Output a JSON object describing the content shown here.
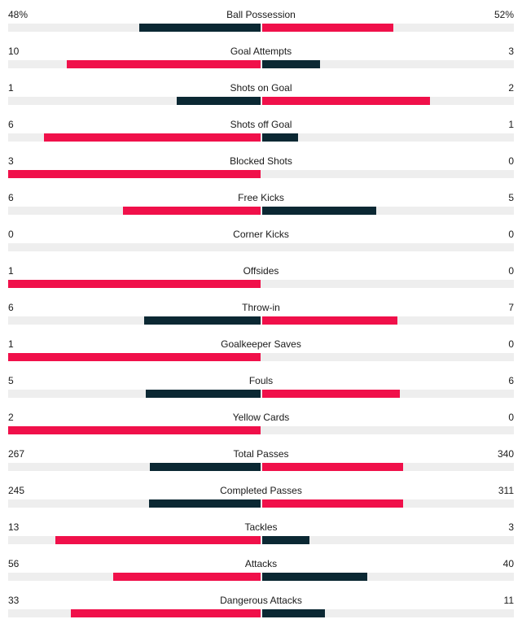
{
  "colors": {
    "leader": "#f0104a",
    "trailer": "#0b2833",
    "track": "#eeeeee"
  },
  "stats": [
    {
      "name": "Ball Possession",
      "home": "48%",
      "away": "52%",
      "home_value": 48,
      "away_value": 52
    },
    {
      "name": "Goal Attempts",
      "home": "10",
      "away": "3",
      "home_value": 10,
      "away_value": 3
    },
    {
      "name": "Shots on Goal",
      "home": "1",
      "away": "2",
      "home_value": 1,
      "away_value": 2
    },
    {
      "name": "Shots off Goal",
      "home": "6",
      "away": "1",
      "home_value": 6,
      "away_value": 1
    },
    {
      "name": "Blocked Shots",
      "home": "3",
      "away": "0",
      "home_value": 3,
      "away_value": 0
    },
    {
      "name": "Free Kicks",
      "home": "6",
      "away": "5",
      "home_value": 6,
      "away_value": 5
    },
    {
      "name": "Corner Kicks",
      "home": "0",
      "away": "0",
      "home_value": 0,
      "away_value": 0
    },
    {
      "name": "Offsides",
      "home": "1",
      "away": "0",
      "home_value": 1,
      "away_value": 0
    },
    {
      "name": "Throw-in",
      "home": "6",
      "away": "7",
      "home_value": 6,
      "away_value": 7
    },
    {
      "name": "Goalkeeper Saves",
      "home": "1",
      "away": "0",
      "home_value": 1,
      "away_value": 0
    },
    {
      "name": "Fouls",
      "home": "5",
      "away": "6",
      "home_value": 5,
      "away_value": 6
    },
    {
      "name": "Yellow Cards",
      "home": "2",
      "away": "0",
      "home_value": 2,
      "away_value": 0
    },
    {
      "name": "Total Passes",
      "home": "267",
      "away": "340",
      "home_value": 267,
      "away_value": 340
    },
    {
      "name": "Completed Passes",
      "home": "245",
      "away": "311",
      "home_value": 245,
      "away_value": 311
    },
    {
      "name": "Tackles",
      "home": "13",
      "away": "3",
      "home_value": 13,
      "away_value": 3
    },
    {
      "name": "Attacks",
      "home": "56",
      "away": "40",
      "home_value": 56,
      "away_value": 40
    },
    {
      "name": "Dangerous Attacks",
      "home": "33",
      "away": "11",
      "home_value": 33,
      "away_value": 11
    }
  ]
}
